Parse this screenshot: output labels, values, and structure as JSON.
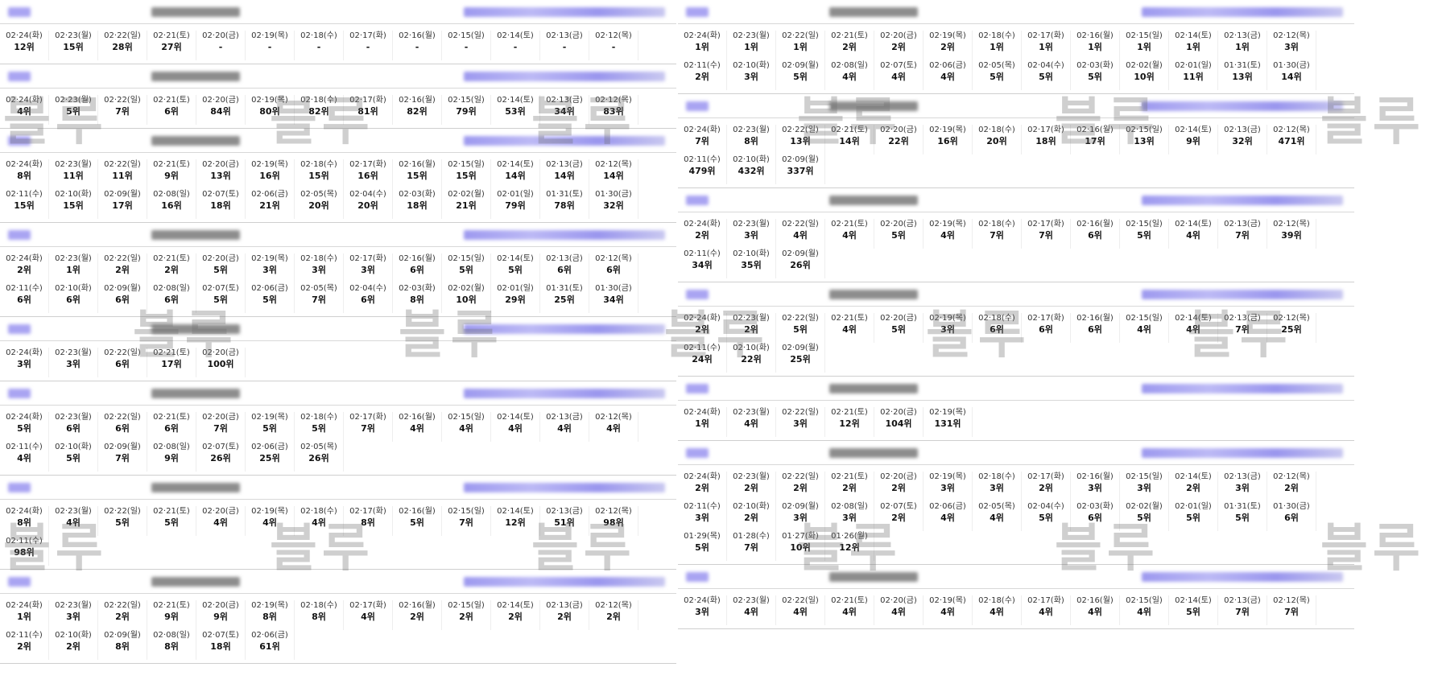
{
  "watermark": "블루",
  "left_blocks": [
    {
      "cells": [
        [
          "02·24(화)",
          "12위"
        ],
        [
          "02·23(월)",
          "15위"
        ],
        [
          "02·22(일)",
          "28위"
        ],
        [
          "02·21(토)",
          "27위"
        ],
        [
          "02·20(금)",
          "-"
        ],
        [
          "02·19(목)",
          "-"
        ],
        [
          "02·18(수)",
          "-"
        ],
        [
          "02·17(화)",
          "-"
        ],
        [
          "02·16(월)",
          "-"
        ],
        [
          "02·15(일)",
          "-"
        ],
        [
          "02·14(토)",
          "-"
        ],
        [
          "02·13(금)",
          "-"
        ],
        [
          "02·12(목)",
          "-"
        ]
      ]
    },
    {
      "cells": [
        [
          "02·24(화)",
          "4위"
        ],
        [
          "02·23(월)",
          "5위"
        ],
        [
          "02·22(일)",
          "7위"
        ],
        [
          "02·21(토)",
          "6위"
        ],
        [
          "02·20(금)",
          "84위"
        ],
        [
          "02·19(목)",
          "80위"
        ],
        [
          "02·18(수)",
          "82위"
        ],
        [
          "02·17(화)",
          "81위"
        ],
        [
          "02·16(월)",
          "82위"
        ],
        [
          "02·15(일)",
          "79위"
        ],
        [
          "02·14(토)",
          "53위"
        ],
        [
          "02·13(금)",
          "34위"
        ],
        [
          "02·12(목)",
          "83위"
        ]
      ]
    },
    {
      "cells": [
        [
          "02·24(화)",
          "8위"
        ],
        [
          "02·23(월)",
          "11위"
        ],
        [
          "02·22(일)",
          "11위"
        ],
        [
          "02·21(토)",
          "9위"
        ],
        [
          "02·20(금)",
          "13위"
        ],
        [
          "02·19(목)",
          "16위"
        ],
        [
          "02·18(수)",
          "15위"
        ],
        [
          "02·17(화)",
          "16위"
        ],
        [
          "02·16(월)",
          "15위"
        ],
        [
          "02·15(일)",
          "15위"
        ],
        [
          "02·14(토)",
          "14위"
        ],
        [
          "02·13(금)",
          "14위"
        ],
        [
          "02·12(목)",
          "14위"
        ],
        [
          "02·11(수)",
          "15위"
        ],
        [
          "02·10(화)",
          "15위"
        ],
        [
          "02·09(월)",
          "17위"
        ],
        [
          "02·08(일)",
          "16위"
        ],
        [
          "02·07(토)",
          "18위"
        ],
        [
          "02·06(금)",
          "21위"
        ],
        [
          "02·05(목)",
          "20위"
        ],
        [
          "02·04(수)",
          "20위"
        ],
        [
          "02·03(화)",
          "18위"
        ],
        [
          "02·02(월)",
          "21위"
        ],
        [
          "02·01(일)",
          "79위"
        ],
        [
          "01·31(토)",
          "78위"
        ],
        [
          "01·30(금)",
          "32위"
        ]
      ]
    },
    {
      "cells": [
        [
          "02·24(화)",
          "2위"
        ],
        [
          "02·23(월)",
          "1위"
        ],
        [
          "02·22(일)",
          "2위"
        ],
        [
          "02·21(토)",
          "2위"
        ],
        [
          "02·20(금)",
          "5위"
        ],
        [
          "02·19(목)",
          "3위"
        ],
        [
          "02·18(수)",
          "3위"
        ],
        [
          "02·17(화)",
          "3위"
        ],
        [
          "02·16(월)",
          "6위"
        ],
        [
          "02·15(일)",
          "5위"
        ],
        [
          "02·14(토)",
          "5위"
        ],
        [
          "02·13(금)",
          "6위"
        ],
        [
          "02·12(목)",
          "6위"
        ],
        [
          "02·11(수)",
          "6위"
        ],
        [
          "02·10(화)",
          "6위"
        ],
        [
          "02·09(월)",
          "6위"
        ],
        [
          "02·08(일)",
          "6위"
        ],
        [
          "02·07(토)",
          "5위"
        ],
        [
          "02·06(금)",
          "5위"
        ],
        [
          "02·05(목)",
          "7위"
        ],
        [
          "02·04(수)",
          "6위"
        ],
        [
          "02·03(화)",
          "8위"
        ],
        [
          "02·02(월)",
          "10위"
        ],
        [
          "02·01(일)",
          "29위"
        ],
        [
          "01·31(토)",
          "25위"
        ],
        [
          "01·30(금)",
          "34위"
        ]
      ]
    },
    {
      "cells": [
        [
          "02·24(화)",
          "3위"
        ],
        [
          "02·23(월)",
          "3위"
        ],
        [
          "02·22(일)",
          "6위"
        ],
        [
          "02·21(토)",
          "17위"
        ],
        [
          "02·20(금)",
          "100위"
        ]
      ]
    },
    {
      "cells": [
        [
          "02·24(화)",
          "5위"
        ],
        [
          "02·23(월)",
          "6위"
        ],
        [
          "02·22(일)",
          "6위"
        ],
        [
          "02·21(토)",
          "6위"
        ],
        [
          "02·20(금)",
          "7위"
        ],
        [
          "02·19(목)",
          "5위"
        ],
        [
          "02·18(수)",
          "5위"
        ],
        [
          "02·17(화)",
          "7위"
        ],
        [
          "02·16(월)",
          "4위"
        ],
        [
          "02·15(일)",
          "4위"
        ],
        [
          "02·14(토)",
          "4위"
        ],
        [
          "02·13(금)",
          "4위"
        ],
        [
          "02·12(목)",
          "4위"
        ],
        [
          "02·11(수)",
          "4위"
        ],
        [
          "02·10(화)",
          "5위"
        ],
        [
          "02·09(월)",
          "7위"
        ],
        [
          "02·08(일)",
          "9위"
        ],
        [
          "02·07(토)",
          "26위"
        ],
        [
          "02·06(금)",
          "25위"
        ],
        [
          "02·05(목)",
          "26위"
        ]
      ]
    },
    {
      "cells": [
        [
          "02·24(화)",
          "8위"
        ],
        [
          "02·23(월)",
          "4위"
        ],
        [
          "02·22(일)",
          "5위"
        ],
        [
          "02·21(토)",
          "5위"
        ],
        [
          "02·20(금)",
          "4위"
        ],
        [
          "02·19(목)",
          "4위"
        ],
        [
          "02·18(수)",
          "4위"
        ],
        [
          "02·17(화)",
          "8위"
        ],
        [
          "02·16(월)",
          "5위"
        ],
        [
          "02·15(일)",
          "7위"
        ],
        [
          "02·14(토)",
          "12위"
        ],
        [
          "02·13(금)",
          "51위"
        ],
        [
          "02·12(목)",
          "98위"
        ],
        [
          "02·11(수)",
          "98위"
        ]
      ]
    },
    {
      "cells": [
        [
          "02·24(화)",
          "1위"
        ],
        [
          "02·23(월)",
          "3위"
        ],
        [
          "02·22(일)",
          "2위"
        ],
        [
          "02·21(토)",
          "9위"
        ],
        [
          "02·20(금)",
          "9위"
        ],
        [
          "02·19(목)",
          "8위"
        ],
        [
          "02·18(수)",
          "8위"
        ],
        [
          "02·17(화)",
          "4위"
        ],
        [
          "02·16(월)",
          "2위"
        ],
        [
          "02·15(일)",
          "2위"
        ],
        [
          "02·14(토)",
          "2위"
        ],
        [
          "02·13(금)",
          "2위"
        ],
        [
          "02·12(목)",
          "2위"
        ],
        [
          "02·11(수)",
          "2위"
        ],
        [
          "02·10(화)",
          "2위"
        ],
        [
          "02·09(월)",
          "8위"
        ],
        [
          "02·08(일)",
          "8위"
        ],
        [
          "02·07(토)",
          "18위"
        ],
        [
          "02·06(금)",
          "61위"
        ]
      ]
    }
  ],
  "right_blocks": [
    {
      "cells": [
        [
          "02·24(화)",
          "1위"
        ],
        [
          "02·23(월)",
          "1위"
        ],
        [
          "02·22(일)",
          "1위"
        ],
        [
          "02·21(토)",
          "2위"
        ],
        [
          "02·20(금)",
          "2위"
        ],
        [
          "02·19(목)",
          "2위"
        ],
        [
          "02·18(수)",
          "1위"
        ],
        [
          "02·17(화)",
          "1위"
        ],
        [
          "02·16(월)",
          "1위"
        ],
        [
          "02·15(일)",
          "1위"
        ],
        [
          "02·14(토)",
          "1위"
        ],
        [
          "02·13(금)",
          "1위"
        ],
        [
          "02·12(목)",
          "3위"
        ],
        [
          "02·11(수)",
          "2위"
        ],
        [
          "02·10(화)",
          "3위"
        ],
        [
          "02·09(월)",
          "5위"
        ],
        [
          "02·08(일)",
          "4위"
        ],
        [
          "02·07(토)",
          "4위"
        ],
        [
          "02·06(금)",
          "4위"
        ],
        [
          "02·05(목)",
          "5위"
        ],
        [
          "02·04(수)",
          "5위"
        ],
        [
          "02·03(화)",
          "5위"
        ],
        [
          "02·02(월)",
          "10위"
        ],
        [
          "02·01(일)",
          "11위"
        ],
        [
          "01·31(토)",
          "13위"
        ],
        [
          "01·30(금)",
          "14위"
        ]
      ]
    },
    {
      "cells": [
        [
          "02·24(화)",
          "7위"
        ],
        [
          "02·23(월)",
          "8위"
        ],
        [
          "02·22(일)",
          "13위"
        ],
        [
          "02·21(토)",
          "14위"
        ],
        [
          "02·20(금)",
          "22위"
        ],
        [
          "02·19(목)",
          "16위"
        ],
        [
          "02·18(수)",
          "20위"
        ],
        [
          "02·17(화)",
          "18위"
        ],
        [
          "02·16(월)",
          "17위"
        ],
        [
          "02·15(일)",
          "13위"
        ],
        [
          "02·14(토)",
          "9위"
        ],
        [
          "02·13(금)",
          "32위"
        ],
        [
          "02·12(목)",
          "471위"
        ],
        [
          "02·11(수)",
          "479위"
        ],
        [
          "02·10(화)",
          "432위"
        ],
        [
          "02·09(월)",
          "337위"
        ]
      ]
    },
    {
      "cells": [
        [
          "02·24(화)",
          "2위"
        ],
        [
          "02·23(월)",
          "3위"
        ],
        [
          "02·22(일)",
          "4위"
        ],
        [
          "02·21(토)",
          "4위"
        ],
        [
          "02·20(금)",
          "5위"
        ],
        [
          "02·19(목)",
          "4위"
        ],
        [
          "02·18(수)",
          "7위"
        ],
        [
          "02·17(화)",
          "7위"
        ],
        [
          "02·16(월)",
          "6위"
        ],
        [
          "02·15(일)",
          "5위"
        ],
        [
          "02·14(토)",
          "4위"
        ],
        [
          "02·13(금)",
          "7위"
        ],
        [
          "02·12(목)",
          "39위"
        ],
        [
          "02·11(수)",
          "34위"
        ],
        [
          "02·10(화)",
          "35위"
        ],
        [
          "02·09(월)",
          "26위"
        ]
      ]
    },
    {
      "cells": [
        [
          "02·24(화)",
          "2위"
        ],
        [
          "02·23(월)",
          "2위"
        ],
        [
          "02·22(일)",
          "5위"
        ],
        [
          "02·21(토)",
          "4위"
        ],
        [
          "02·20(금)",
          "5위"
        ],
        [
          "02·19(목)",
          "3위"
        ],
        [
          "02·18(수)",
          "6위"
        ],
        [
          "02·17(화)",
          "6위"
        ],
        [
          "02·16(월)",
          "6위"
        ],
        [
          "02·15(일)",
          "4위"
        ],
        [
          "02·14(토)",
          "4위"
        ],
        [
          "02·13(금)",
          "7위"
        ],
        [
          "02·12(목)",
          "25위"
        ],
        [
          "02·11(수)",
          "24위"
        ],
        [
          "02·10(화)",
          "22위"
        ],
        [
          "02·09(월)",
          "25위"
        ]
      ]
    },
    {
      "cells": [
        [
          "02·24(화)",
          "1위"
        ],
        [
          "02·23(월)",
          "4위"
        ],
        [
          "02·22(일)",
          "3위"
        ],
        [
          "02·21(토)",
          "12위"
        ],
        [
          "02·20(금)",
          "104위"
        ],
        [
          "02·19(목)",
          "131위"
        ]
      ]
    },
    {
      "cells": [
        [
          "02·24(화)",
          "2위"
        ],
        [
          "02·23(월)",
          "2위"
        ],
        [
          "02·22(일)",
          "2위"
        ],
        [
          "02·21(토)",
          "2위"
        ],
        [
          "02·20(금)",
          "2위"
        ],
        [
          "02·19(목)",
          "3위"
        ],
        [
          "02·18(수)",
          "3위"
        ],
        [
          "02·17(화)",
          "2위"
        ],
        [
          "02·16(월)",
          "3위"
        ],
        [
          "02·15(일)",
          "3위"
        ],
        [
          "02·14(토)",
          "2위"
        ],
        [
          "02·13(금)",
          "3위"
        ],
        [
          "02·12(목)",
          "2위"
        ],
        [
          "02·11(수)",
          "3위"
        ],
        [
          "02·10(화)",
          "2위"
        ],
        [
          "02·09(월)",
          "3위"
        ],
        [
          "02·08(일)",
          "3위"
        ],
        [
          "02·07(토)",
          "2위"
        ],
        [
          "02·06(금)",
          "4위"
        ],
        [
          "02·05(목)",
          "4위"
        ],
        [
          "02·04(수)",
          "5위"
        ],
        [
          "02·03(화)",
          "6위"
        ],
        [
          "02·02(월)",
          "5위"
        ],
        [
          "02·01(일)",
          "5위"
        ],
        [
          "01·31(토)",
          "5위"
        ],
        [
          "01·30(금)",
          "6위"
        ],
        [
          "01·29(목)",
          "5위"
        ],
        [
          "01·28(수)",
          "7위"
        ],
        [
          "01·27(화)",
          "10위"
        ],
        [
          "01·26(월)",
          "12위"
        ]
      ]
    },
    {
      "cells": [
        [
          "02·24(화)",
          "3위"
        ],
        [
          "02·23(월)",
          "4위"
        ],
        [
          "02·22(일)",
          "4위"
        ],
        [
          "02·21(토)",
          "4위"
        ],
        [
          "02·20(금)",
          "4위"
        ],
        [
          "02·19(목)",
          "4위"
        ],
        [
          "02·18(수)",
          "4위"
        ],
        [
          "02·17(화)",
          "4위"
        ],
        [
          "02·16(월)",
          "4위"
        ],
        [
          "02·15(일)",
          "4위"
        ],
        [
          "02·14(토)",
          "5위"
        ],
        [
          "02·13(금)",
          "7위"
        ],
        [
          "02·12(목)",
          "7위"
        ]
      ]
    }
  ]
}
